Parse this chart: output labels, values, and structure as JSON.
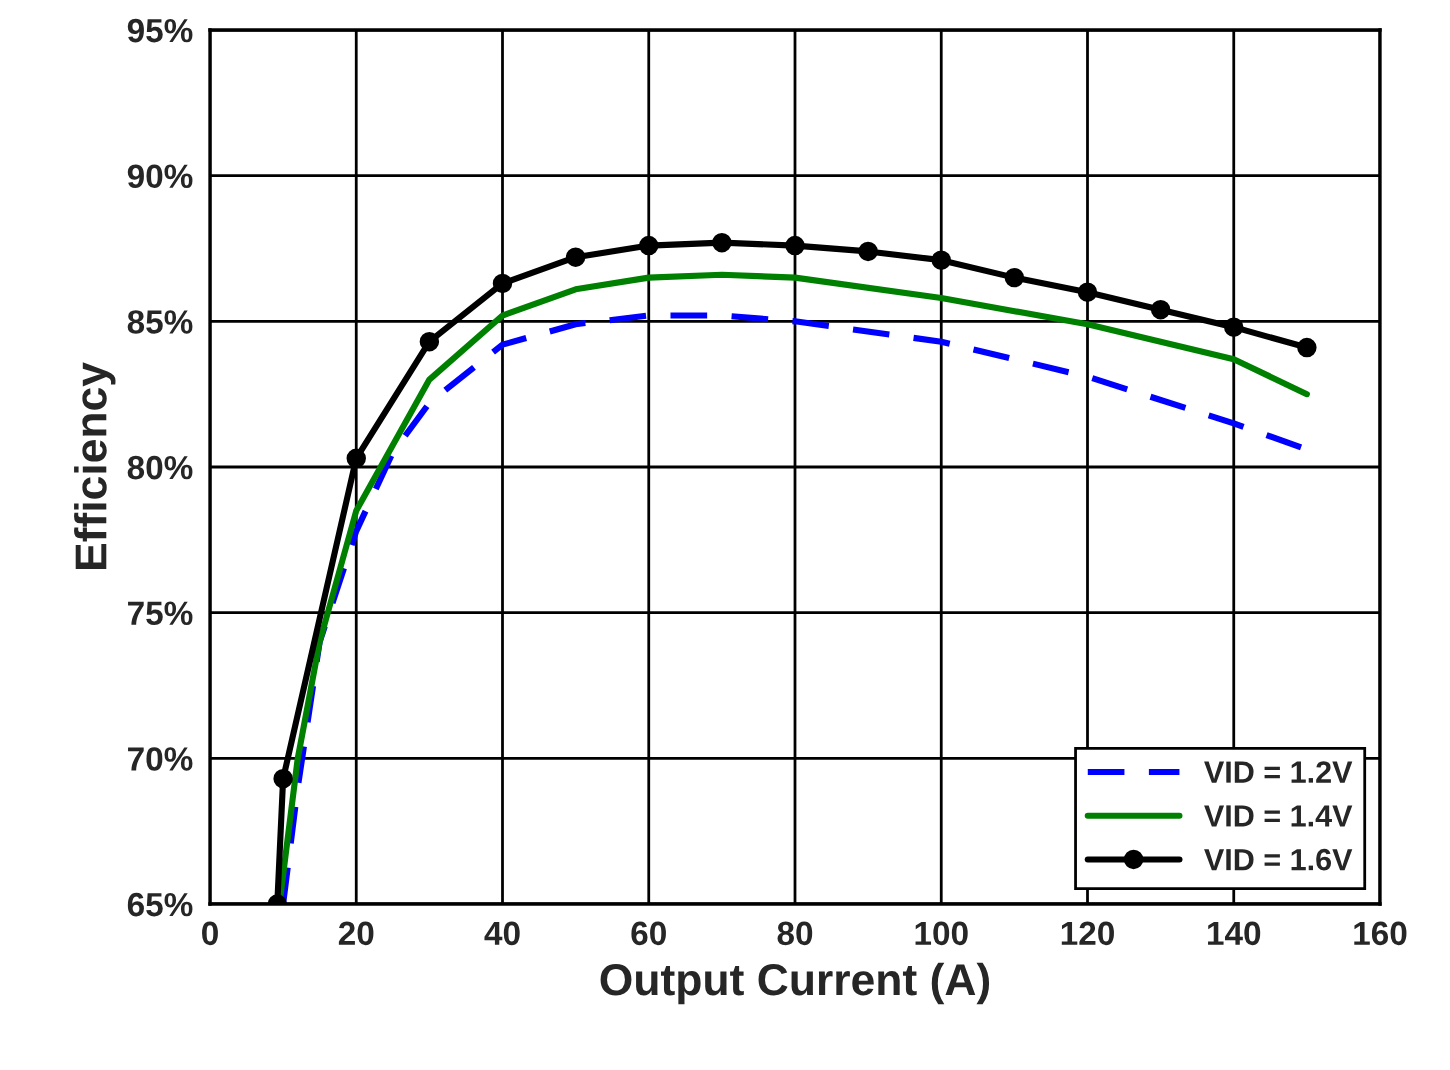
{
  "chart_data": {
    "type": "line",
    "xlabel": "Output Current (A)",
    "ylabel": "Efficiency",
    "xlim": [
      0,
      160
    ],
    "xticks": [
      0,
      20,
      40,
      60,
      80,
      100,
      120,
      140,
      160
    ],
    "ylim": [
      65,
      95
    ],
    "yticks": [
      {
        "value": 65,
        "label": "65%"
      },
      {
        "value": 70,
        "label": "70%"
      },
      {
        "value": 75,
        "label": "75%"
      },
      {
        "value": 80,
        "label": "80%"
      },
      {
        "value": 85,
        "label": "85%"
      },
      {
        "value": 90,
        "label": "90%"
      },
      {
        "value": 95,
        "label": "95%"
      }
    ],
    "grid": true,
    "legend": "bottom right",
    "series": [
      {
        "name": "VID = 1.2V",
        "color": "#0000ff",
        "line_style": "dashed",
        "marker": "none",
        "x": [
          10,
          12,
          15,
          20,
          25,
          30,
          40,
          50,
          60,
          70,
          80,
          100,
          120,
          140,
          150
        ],
        "values": [
          65,
          69,
          74,
          77.8,
          80.5,
          82.2,
          84.2,
          84.9,
          85.2,
          85.2,
          85.0,
          84.3,
          83.1,
          81.5,
          80.6
        ]
      },
      {
        "name": "VID = 1.4V",
        "color": "#008000",
        "line_style": "solid",
        "marker": "none",
        "x": [
          9.5,
          12,
          15,
          20,
          30,
          40,
          50,
          60,
          70,
          80,
          100,
          120,
          140,
          150
        ],
        "values": [
          65,
          70,
          74,
          78.5,
          83,
          85.2,
          86.1,
          86.5,
          86.6,
          86.5,
          85.8,
          84.9,
          83.7,
          82.5
        ]
      },
      {
        "name": "VID = 1.6V",
        "color": "#000000",
        "line_style": "solid",
        "marker": "circle",
        "x": [
          9.2,
          10,
          20,
          30,
          40,
          50,
          60,
          70,
          80,
          90,
          100,
          110,
          120,
          130,
          140,
          150
        ],
        "values": [
          65,
          69.3,
          80.3,
          84.3,
          86.3,
          87.2,
          87.6,
          87.7,
          87.6,
          87.4,
          87.1,
          86.5,
          86.0,
          85.4,
          84.8,
          84.1
        ]
      }
    ]
  }
}
